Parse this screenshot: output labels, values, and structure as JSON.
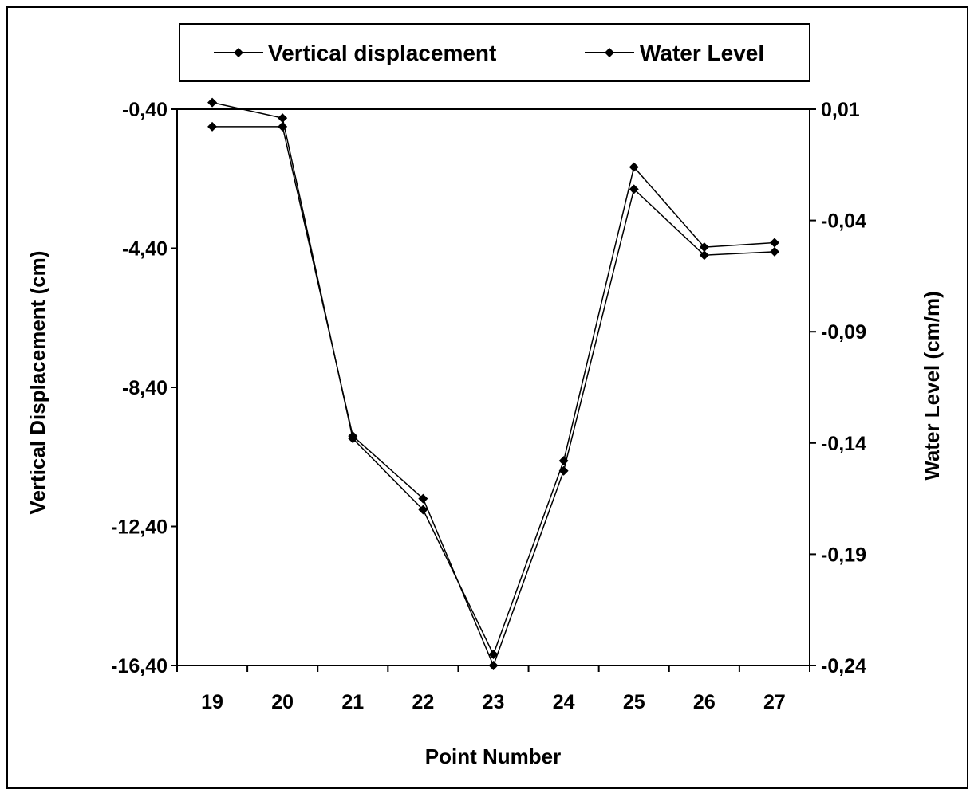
{
  "chart_data": {
    "type": "line",
    "title": "",
    "xlabel": "Point Number",
    "ylabel": "Vertical Displacement (cm)",
    "y2label": "Water Level (cm/m)",
    "categories": [
      "19",
      "20",
      "21",
      "22",
      "23",
      "24",
      "25",
      "26",
      "27"
    ],
    "ylim": [
      -16.4,
      -0.4
    ],
    "yticks": [
      -0.4,
      -4.4,
      -8.4,
      -12.4,
      -16.4
    ],
    "ytick_labels": [
      "-0,40",
      "-4,40",
      "-8,40",
      "-12,40",
      "-16,40"
    ],
    "y2lim": [
      -0.24,
      0.01
    ],
    "y2ticks": [
      0.01,
      -0.04,
      -0.09,
      -0.14,
      -0.19,
      -0.24
    ],
    "y2tick_labels": [
      "0,01",
      "-0,04",
      "-0,09",
      "-0,14",
      "-0,19",
      "-0,24"
    ],
    "legend_position": "top",
    "series": [
      {
        "name": "Vertical displacement",
        "axis": "left",
        "values": [
          -0.9,
          -0.9,
          -9.8,
          -11.6,
          -16.4,
          -10.8,
          -2.7,
          -4.6,
          -4.5
        ],
        "color": "#000000"
      },
      {
        "name": "Water Level",
        "axis": "right",
        "values": [
          0.013,
          0.006,
          -0.138,
          -0.17,
          -0.235,
          -0.148,
          -0.016,
          -0.052,
          -0.05
        ],
        "color": "#000000"
      }
    ]
  }
}
